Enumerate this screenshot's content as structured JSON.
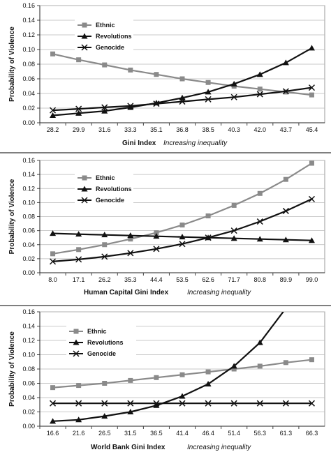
{
  "series_styles": {
    "Ethnic": {
      "color": "#8a8a8a",
      "marker": "square"
    },
    "Revolutions": {
      "color": "#111111",
      "marker": "triangle"
    },
    "Genocide": {
      "color": "#111111",
      "marker": "cross"
    }
  },
  "chart_data": [
    {
      "type": "line",
      "ylabel": "Probability of Violence",
      "xlabel": "Gini Index",
      "xlabel_note": "Increasing inequality",
      "ylim": [
        0,
        0.16
      ],
      "yticks": [
        "0.00",
        "0.02",
        "0.04",
        "0.06",
        "0.08",
        "0.10",
        "0.12",
        "0.14",
        "0.16"
      ],
      "categories": [
        "28.2",
        "29.9",
        "31.6",
        "33.3",
        "35.1",
        "36.8",
        "38.5",
        "40.3",
        "42.0",
        "43.7",
        "45.4"
      ],
      "grid": true,
      "legend_position": "top-left",
      "series": [
        {
          "name": "Ethnic",
          "values": [
            0.094,
            0.086,
            0.079,
            0.072,
            0.066,
            0.06,
            0.055,
            0.05,
            0.046,
            0.042,
            0.038
          ]
        },
        {
          "name": "Revolutions",
          "values": [
            0.01,
            0.013,
            0.016,
            0.021,
            0.027,
            0.034,
            0.042,
            0.053,
            0.066,
            0.082,
            0.102
          ]
        },
        {
          "name": "Genocide",
          "values": [
            0.017,
            0.019,
            0.021,
            0.023,
            0.026,
            0.029,
            0.032,
            0.035,
            0.039,
            0.043,
            0.048
          ]
        }
      ]
    },
    {
      "type": "line",
      "ylabel": "Probability of Violence",
      "xlabel": "Human Capital Gini  Index",
      "xlabel_note": "Increasing inequality",
      "ylim": [
        0,
        0.16
      ],
      "yticks": [
        "0.00",
        "0.02",
        "0.04",
        "0.06",
        "0.08",
        "0.10",
        "0.12",
        "0.14",
        "0.16"
      ],
      "categories": [
        "8.0",
        "17.1",
        "26.2",
        "35.3",
        "44.4",
        "53.5",
        "62.6",
        "71.7",
        "80.8",
        "89.9",
        "99.0"
      ],
      "grid": true,
      "legend_position": "top-left",
      "series": [
        {
          "name": "Ethnic",
          "values": [
            0.027,
            0.033,
            0.04,
            0.048,
            0.057,
            0.068,
            0.081,
            0.096,
            0.113,
            0.133,
            0.156
          ]
        },
        {
          "name": "Revolutions",
          "values": [
            0.056,
            0.055,
            0.054,
            0.053,
            0.052,
            0.051,
            0.05,
            0.049,
            0.048,
            0.047,
            0.046
          ]
        },
        {
          "name": "Genocide",
          "values": [
            0.016,
            0.019,
            0.023,
            0.028,
            0.034,
            0.041,
            0.05,
            0.06,
            0.073,
            0.088,
            0.105
          ]
        }
      ]
    },
    {
      "type": "line",
      "ylabel": "Probability of Violence",
      "xlabel": "World Bank Gini Index",
      "xlabel_note": "Increasing inequality",
      "ylim": [
        0,
        0.16
      ],
      "yticks": [
        "0.00",
        "0.02",
        "0.04",
        "0.06",
        "0.08",
        "0.10",
        "0.12",
        "0.14",
        "0.16"
      ],
      "categories": [
        "16.6",
        "21.6",
        "26.5",
        "31.5",
        "36.5",
        "41.4",
        "46.4",
        "51.4",
        "56.3",
        "61.3",
        "66.3"
      ],
      "grid": true,
      "legend_position": "top-left",
      "series": [
        {
          "name": "Ethnic",
          "values": [
            0.054,
            0.057,
            0.06,
            0.064,
            0.068,
            0.072,
            0.076,
            0.08,
            0.084,
            0.089,
            0.093
          ]
        },
        {
          "name": "Revolutions",
          "values": [
            0.007,
            0.009,
            0.014,
            0.02,
            0.029,
            0.042,
            0.059,
            0.084,
            0.117,
            0.165,
            null
          ]
        },
        {
          "name": "Genocide",
          "values": [
            0.032,
            0.032,
            0.032,
            0.032,
            0.032,
            0.032,
            0.032,
            0.032,
            0.032,
            0.032,
            0.032
          ]
        }
      ]
    }
  ]
}
